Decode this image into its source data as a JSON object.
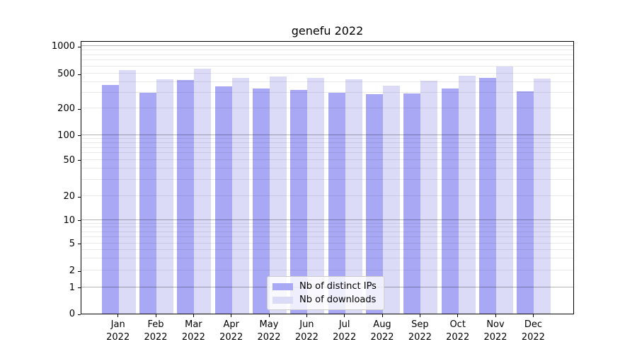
{
  "figure_title": "genefu 2022",
  "chart_data": {
    "type": "bar",
    "title": "genefu 2022",
    "year": "2022",
    "months": [
      "Jan",
      "Feb",
      "Mar",
      "Apr",
      "May",
      "Jun",
      "Jul",
      "Aug",
      "Sep",
      "Oct",
      "Nov",
      "Dec"
    ],
    "categories": [
      "Jan 2022",
      "Feb 2022",
      "Mar 2022",
      "Apr 2022",
      "May 2022",
      "Jun 2022",
      "Jul 2022",
      "Aug 2022",
      "Sep 2022",
      "Oct 2022",
      "Nov 2022",
      "Dec 2022"
    ],
    "series": [
      {
        "name": "Nb of distinct IPs",
        "color": "#a8a8f5",
        "values": [
          375,
          305,
          425,
          355,
          340,
          325,
          300,
          290,
          295,
          340,
          450,
          315
        ]
      },
      {
        "name": "Nb of downloads",
        "color": "#dbdbf8",
        "values": [
          550,
          435,
          565,
          445,
          465,
          450,
          430,
          365,
          415,
          475,
          595,
          440
        ]
      }
    ],
    "yticks": [
      0,
      1,
      2,
      5,
      10,
      20,
      50,
      100,
      200,
      500,
      1000
    ],
    "yscale": "symlog",
    "ylim": [
      0,
      1160
    ],
    "xlabel": "",
    "ylabel": "",
    "grid": true,
    "legend_position": "lower center"
  },
  "colors": {
    "minor_grid": "#e9e9e9",
    "major_grid": "#b3b3b3",
    "spine": "#000000",
    "legend_border": "#cccccc"
  }
}
